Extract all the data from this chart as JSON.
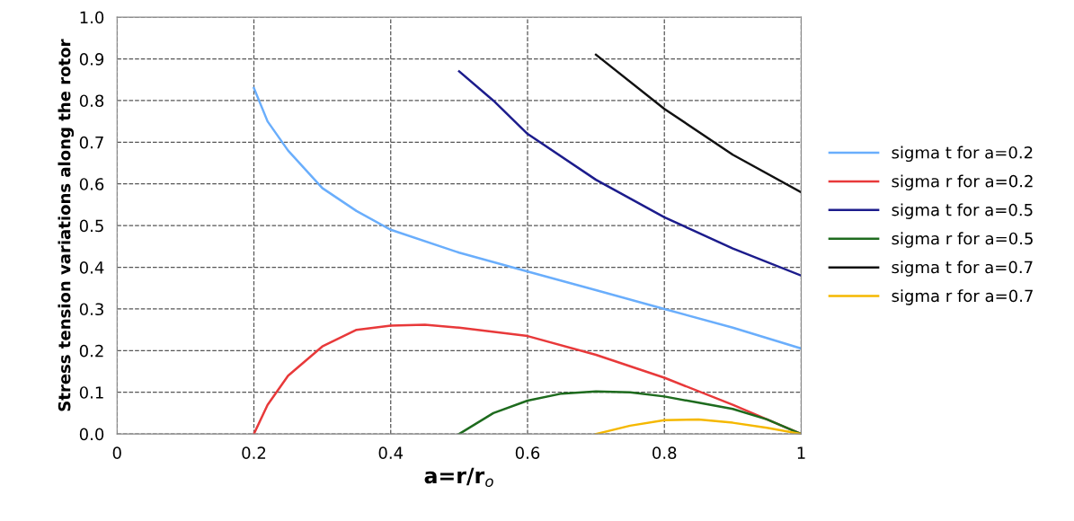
{
  "chart_data": {
    "type": "line",
    "xlabel": "a=r/r$_{o}$",
    "ylabel": "Stress tension variations along the rotor",
    "xlim": [
      0,
      1
    ],
    "xticks": [
      0,
      0.2,
      0.4,
      0.6,
      0.8,
      1
    ],
    "ylim": [
      0,
      1
    ],
    "yticks": [
      {
        "value": 0,
        "label": "0.0"
      },
      0.1,
      0.2,
      0.3,
      0.4,
      0.5,
      0.6,
      0.7,
      0.8,
      0.9,
      {
        "value": 1,
        "label": "1.0"
      }
    ],
    "grid": true,
    "legend": "right",
    "marker": "none",
    "line_style": "solid",
    "series": [
      {
        "name": "sigma t for a=0.2",
        "color": "#6aaefc",
        "x": [
          0.2,
          0.22,
          0.25,
          0.3,
          0.35,
          0.4,
          0.5,
          0.6,
          0.7,
          0.8,
          0.9,
          1.0
        ],
        "values": [
          0.83,
          0.75,
          0.68,
          0.59,
          0.535,
          0.49,
          0.435,
          0.39,
          0.345,
          0.3,
          0.255,
          0.205
        ]
      },
      {
        "name": "sigma r for a=0.2",
        "color": "#e8393a",
        "x": [
          0.2,
          0.22,
          0.25,
          0.3,
          0.35,
          0.4,
          0.45,
          0.5,
          0.6,
          0.7,
          0.8,
          0.9,
          1.0
        ],
        "values": [
          0.0,
          0.07,
          0.14,
          0.21,
          0.25,
          0.26,
          0.262,
          0.255,
          0.235,
          0.19,
          0.135,
          0.07,
          0.0
        ]
      },
      {
        "name": "sigma t for a=0.5",
        "color": "#1c1c8c",
        "x": [
          0.5,
          0.55,
          0.6,
          0.7,
          0.8,
          0.9,
          1.0
        ],
        "values": [
          0.87,
          0.8,
          0.72,
          0.61,
          0.52,
          0.445,
          0.38
        ]
      },
      {
        "name": "sigma r for a=0.5",
        "color": "#1e6b1e",
        "x": [
          0.5,
          0.55,
          0.6,
          0.65,
          0.7,
          0.75,
          0.8,
          0.85,
          0.9,
          0.95,
          1.0
        ],
        "values": [
          0.0,
          0.05,
          0.08,
          0.097,
          0.102,
          0.1,
          0.09,
          0.075,
          0.06,
          0.035,
          0.0
        ]
      },
      {
        "name": "sigma t for a=0.7",
        "color": "#111111",
        "x": [
          0.7,
          0.8,
          0.9,
          1.0
        ],
        "values": [
          0.91,
          0.78,
          0.67,
          0.58
        ]
      },
      {
        "name": "sigma r for a=0.7",
        "color": "#f5b800",
        "x": [
          0.7,
          0.75,
          0.8,
          0.85,
          0.9,
          0.95,
          1.0
        ],
        "values": [
          0.0,
          0.02,
          0.033,
          0.035,
          0.027,
          0.015,
          0.0
        ]
      }
    ]
  }
}
